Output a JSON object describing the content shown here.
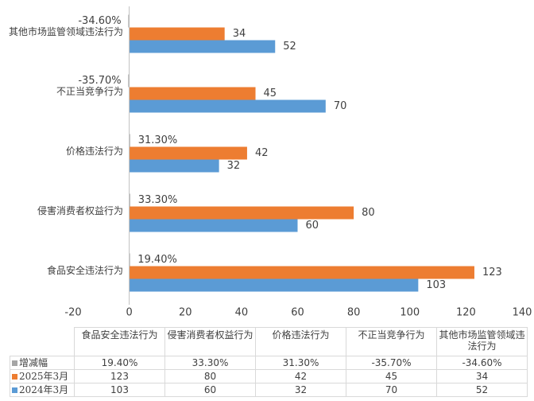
{
  "chart_data": {
    "type": "bar",
    "orientation": "horizontal",
    "categories": [
      "食品安全违法行为",
      "侵害消费者权益行为",
      "价格违法行为",
      "不正当竞争行为",
      "其他市场监管领域违法行为"
    ],
    "series": [
      {
        "name": "增减幅",
        "color": "#a5a5a5",
        "values": [
          0.194,
          0.333,
          0.313,
          -0.357,
          -0.346
        ],
        "value_labels": [
          "19.40%",
          "33.30%",
          "31.30%",
          "-35.70%",
          "-34.60%"
        ]
      },
      {
        "name": "2025年3月",
        "color": "#ed7d31",
        "values": [
          123,
          80,
          42,
          45,
          34
        ]
      },
      {
        "name": "2024年3月",
        "color": "#5b9bd5",
        "values": [
          103,
          60,
          32,
          70,
          52
        ]
      }
    ],
    "xlim": [
      -20,
      140
    ],
    "xticks": [
      -20,
      0,
      20,
      40,
      60,
      80,
      100,
      120,
      140
    ],
    "data_table": true
  }
}
